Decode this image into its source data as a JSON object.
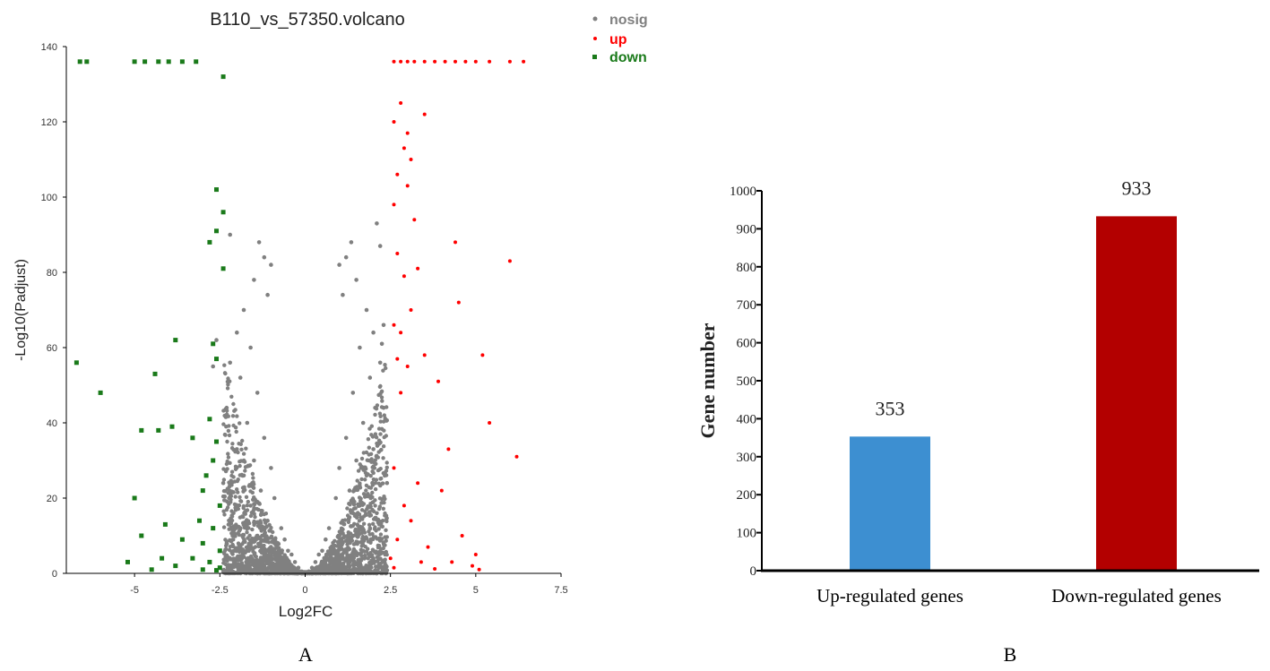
{
  "colors": {
    "nosig": "#808080",
    "up": "#ff0000",
    "down": "#1a7a1a",
    "bar_up": "#3d8fd1",
    "bar_down": "#b30000",
    "axis": "#000000"
  },
  "panels": {
    "a_label": "A",
    "b_label": "B"
  },
  "chart_data": [
    {
      "type": "scatter",
      "title": "B110_vs_57350.volcano",
      "xlabel": "Log2FC",
      "ylabel": "-Log10(Padjust)",
      "xlim": [
        -7,
        7.5
      ],
      "ylim": [
        0,
        140
      ],
      "xticks": [
        -5,
        -2.5,
        0,
        2.5,
        5,
        7.5
      ],
      "xtick_labels": [
        "-5",
        "-2.5",
        "0",
        "2.5",
        "5",
        "7.5"
      ],
      "yticks": [
        0,
        20,
        40,
        60,
        80,
        100,
        120,
        140
      ],
      "ytick_labels": [
        "0",
        "20",
        "40",
        "60",
        "80",
        "100",
        "120",
        "140"
      ],
      "legend_position": "top-right",
      "legend": [
        {
          "name": "nosig",
          "color": "#808080"
        },
        {
          "name": "up",
          "color": "#ff0000"
        },
        {
          "name": "down",
          "color": "#1a7a1a"
        }
      ],
      "series": [
        {
          "name": "nosig",
          "points": [
            [
              -1.2,
              84
            ],
            [
              -1.35,
              88
            ],
            [
              -1.0,
              82
            ],
            [
              -1.5,
              78
            ],
            [
              -1.1,
              74
            ],
            [
              -1.8,
              70
            ],
            [
              -2.0,
              64
            ],
            [
              -1.6,
              60
            ],
            [
              -2.2,
              56
            ],
            [
              -1.9,
              52
            ],
            [
              -1.4,
              48
            ],
            [
              -2.3,
              44
            ],
            [
              -1.7,
              40
            ],
            [
              -1.2,
              36
            ],
            [
              -2.0,
              33
            ],
            [
              -1.5,
              30
            ],
            [
              -1.0,
              28
            ],
            [
              -1.8,
              26
            ],
            [
              -2.4,
              24
            ],
            [
              -1.3,
              22
            ],
            [
              -0.9,
              20
            ],
            [
              -1.6,
              18
            ],
            [
              -2.1,
              16
            ],
            [
              -1.1,
              14
            ],
            [
              -0.7,
              12
            ],
            [
              -1.9,
              12
            ],
            [
              -1.4,
              10
            ],
            [
              -0.6,
              9
            ],
            [
              -2.3,
              8
            ],
            [
              -1.0,
              7
            ],
            [
              -0.5,
              6
            ],
            [
              -1.7,
              6
            ],
            [
              -0.4,
              5
            ],
            [
              -2.0,
              4
            ],
            [
              -1.2,
              4
            ],
            [
              -0.3,
              3
            ],
            [
              -0.8,
              3
            ],
            [
              -1.5,
              2.5
            ],
            [
              -2.2,
              2
            ],
            [
              -0.2,
              1.5
            ],
            [
              -1.0,
              1.5
            ],
            [
              -0.6,
              1
            ],
            [
              -1.8,
              1
            ],
            [
              -0.1,
              0.5
            ],
            [
              -2.4,
              0.8
            ],
            [
              -1.3,
              0.6
            ],
            [
              -2.2,
              90
            ],
            [
              -2.4,
              96
            ],
            [
              -2.7,
              55
            ],
            [
              -2.6,
              62
            ],
            [
              1.2,
              84
            ],
            [
              1.35,
              88
            ],
            [
              1.0,
              82
            ],
            [
              1.5,
              78
            ],
            [
              1.1,
              74
            ],
            [
              1.8,
              70
            ],
            [
              2.0,
              64
            ],
            [
              1.6,
              60
            ],
            [
              2.2,
              56
            ],
            [
              1.9,
              52
            ],
            [
              1.4,
              48
            ],
            [
              2.3,
              44
            ],
            [
              1.7,
              40
            ],
            [
              1.2,
              36
            ],
            [
              2.0,
              33
            ],
            [
              1.5,
              30
            ],
            [
              1.0,
              28
            ],
            [
              1.8,
              26
            ],
            [
              2.4,
              24
            ],
            [
              1.3,
              22
            ],
            [
              0.9,
              20
            ],
            [
              1.6,
              18
            ],
            [
              2.1,
              16
            ],
            [
              1.1,
              14
            ],
            [
              0.7,
              12
            ],
            [
              1.9,
              12
            ],
            [
              1.4,
              10
            ],
            [
              0.6,
              9
            ],
            [
              2.3,
              8
            ],
            [
              1.0,
              7
            ],
            [
              0.5,
              6
            ],
            [
              1.7,
              6
            ],
            [
              0.4,
              5
            ],
            [
              2.0,
              4
            ],
            [
              1.2,
              4
            ],
            [
              0.3,
              3
            ],
            [
              0.8,
              3
            ],
            [
              1.5,
              2.5
            ],
            [
              2.2,
              2
            ],
            [
              0.2,
              1.5
            ],
            [
              1.0,
              1.5
            ],
            [
              0.6,
              1
            ],
            [
              1.8,
              1
            ],
            [
              0.1,
              0.5
            ],
            [
              2.4,
              0.8
            ],
            [
              1.3,
              0.6
            ],
            [
              2.1,
              93
            ],
            [
              2.2,
              87
            ],
            [
              2.3,
              66
            ],
            [
              2.25,
              61
            ]
          ]
        },
        {
          "name": "up",
          "points": [
            [
              2.6,
              136
            ],
            [
              2.8,
              136
            ],
            [
              3.0,
              136
            ],
            [
              3.2,
              136
            ],
            [
              3.5,
              136
            ],
            [
              3.8,
              136
            ],
            [
              4.1,
              136
            ],
            [
              4.4,
              136
            ],
            [
              4.7,
              136
            ],
            [
              5.0,
              136
            ],
            [
              5.4,
              136
            ],
            [
              6.0,
              136
            ],
            [
              6.4,
              136
            ],
            [
              2.8,
              125
            ],
            [
              3.5,
              122
            ],
            [
              2.6,
              120
            ],
            [
              3.0,
              117
            ],
            [
              2.9,
              113
            ],
            [
              3.1,
              110
            ],
            [
              2.7,
              106
            ],
            [
              3.0,
              103
            ],
            [
              2.6,
              98
            ],
            [
              3.2,
              94
            ],
            [
              4.4,
              88
            ],
            [
              6.0,
              83
            ],
            [
              2.7,
              85
            ],
            [
              3.3,
              81
            ],
            [
              2.9,
              79
            ],
            [
              4.5,
              72
            ],
            [
              3.1,
              70
            ],
            [
              2.6,
              66
            ],
            [
              2.8,
              64
            ],
            [
              5.2,
              58
            ],
            [
              3.5,
              58
            ],
            [
              2.7,
              57
            ],
            [
              3.0,
              55
            ],
            [
              3.9,
              51
            ],
            [
              2.8,
              48
            ],
            [
              5.4,
              40
            ],
            [
              4.2,
              33
            ],
            [
              6.2,
              31
            ],
            [
              2.6,
              28
            ],
            [
              3.3,
              24
            ],
            [
              4.0,
              22
            ],
            [
              2.9,
              18
            ],
            [
              3.1,
              14
            ],
            [
              4.6,
              10
            ],
            [
              2.7,
              9
            ],
            [
              3.6,
              7
            ],
            [
              5.0,
              5
            ],
            [
              2.5,
              4
            ],
            [
              3.4,
              3
            ],
            [
              4.3,
              3
            ],
            [
              4.9,
              2
            ],
            [
              2.6,
              1.5
            ],
            [
              3.8,
              1.2
            ],
            [
              5.1,
              1
            ]
          ]
        },
        {
          "name": "down",
          "points": [
            [
              -6.6,
              136
            ],
            [
              -6.4,
              136
            ],
            [
              -5.0,
              136
            ],
            [
              -4.7,
              136
            ],
            [
              -4.3,
              136
            ],
            [
              -4.0,
              136
            ],
            [
              -3.6,
              136
            ],
            [
              -3.2,
              136
            ],
            [
              -2.4,
              132
            ],
            [
              -2.6,
              102
            ],
            [
              -2.4,
              96
            ],
            [
              -2.6,
              91
            ],
            [
              -2.8,
              88
            ],
            [
              -2.4,
              81
            ],
            [
              -3.8,
              62
            ],
            [
              -2.7,
              61
            ],
            [
              -2.6,
              57
            ],
            [
              -6.7,
              56
            ],
            [
              -4.4,
              53
            ],
            [
              -6.0,
              48
            ],
            [
              -4.8,
              38
            ],
            [
              -4.3,
              38
            ],
            [
              -3.9,
              39
            ],
            [
              -2.8,
              41
            ],
            [
              -3.3,
              36
            ],
            [
              -2.6,
              35
            ],
            [
              -2.7,
              30
            ],
            [
              -2.9,
              26
            ],
            [
              -3.0,
              22
            ],
            [
              -5.0,
              20
            ],
            [
              -2.5,
              18
            ],
            [
              -3.1,
              14
            ],
            [
              -4.1,
              13
            ],
            [
              -2.7,
              12
            ],
            [
              -4.8,
              10
            ],
            [
              -3.6,
              9
            ],
            [
              -3.0,
              8
            ],
            [
              -2.5,
              6
            ],
            [
              -4.2,
              4
            ],
            [
              -3.3,
              4
            ],
            [
              -5.2,
              3
            ],
            [
              -2.8,
              3
            ],
            [
              -3.8,
              2
            ],
            [
              -2.5,
              1.5
            ],
            [
              -4.5,
              1
            ],
            [
              -3.0,
              1
            ],
            [
              -2.6,
              0.8
            ]
          ]
        }
      ]
    },
    {
      "type": "bar",
      "categories": [
        "Up-regulated genes",
        "Down-regulated genes"
      ],
      "values": [
        353,
        933
      ],
      "data_labels": [
        "353",
        "933"
      ],
      "bar_colors": [
        "#3d8fd1",
        "#b30000"
      ],
      "title": "",
      "xlabel": "",
      "ylabel": "Gene number",
      "ylim": [
        0,
        1000
      ],
      "yticks": [
        0,
        100,
        200,
        300,
        400,
        500,
        600,
        700,
        800,
        900,
        1000
      ],
      "ytick_labels": [
        "0",
        "100",
        "200",
        "300",
        "400",
        "500",
        "600",
        "700",
        "800",
        "900",
        "1000"
      ]
    }
  ]
}
